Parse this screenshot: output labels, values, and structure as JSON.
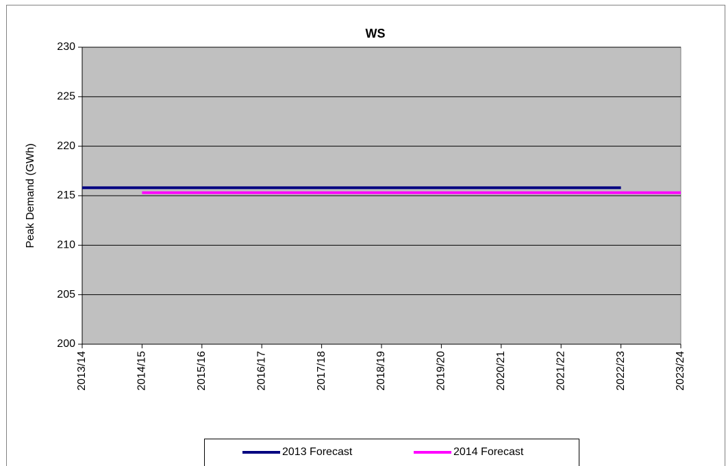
{
  "chart_data": {
    "type": "line",
    "title": "WS",
    "y_label": "Peak Demand (GWh)",
    "categories": [
      "2013/14",
      "2014/15",
      "2015/16",
      "2016/17",
      "2017/18",
      "2018/19",
      "2019/20",
      "2020/21",
      "2021/22",
      "2022/23",
      "2023/24"
    ],
    "series": [
      {
        "name": "2013 Forecast",
        "color": "#000080",
        "values": [
          215.8,
          215.8,
          215.8,
          215.8,
          215.8,
          215.8,
          215.8,
          215.8,
          215.8,
          215.8,
          null
        ]
      },
      {
        "name": "2014 Forecast",
        "color": "#ff00ff",
        "values": [
          null,
          215.3,
          215.3,
          215.3,
          215.3,
          215.3,
          215.3,
          215.3,
          215.3,
          215.3,
          215.3
        ]
      }
    ],
    "ylim": [
      200,
      230
    ],
    "yticks": [
      200,
      205,
      210,
      215,
      220,
      225,
      230
    ],
    "grid": true,
    "legend": "bottom"
  }
}
